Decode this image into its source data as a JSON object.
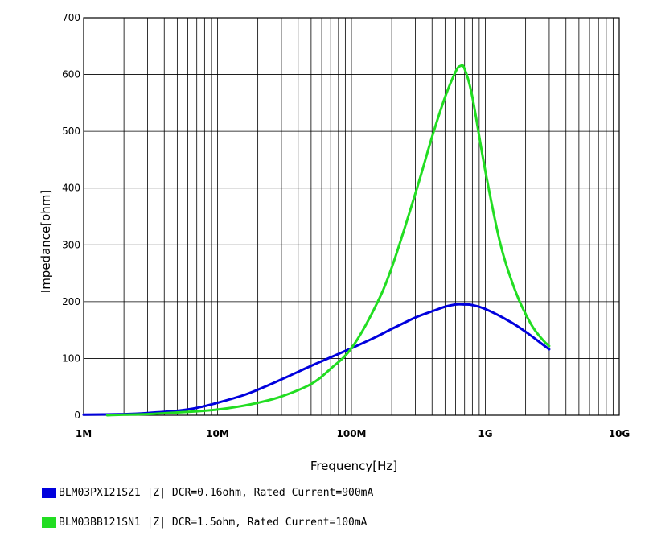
{
  "chart_data": {
    "type": "line",
    "xlabel": "Frequency[Hz]",
    "ylabel": "Impedance[ohm]",
    "x_scale": "log",
    "xlim": [
      1000000,
      10000000000
    ],
    "ylim": [
      0,
      700
    ],
    "grid": true,
    "legend_position": "bottom",
    "x_ticks": [
      {
        "value": 1000000,
        "label": "1M"
      },
      {
        "value": 10000000,
        "label": "10M"
      },
      {
        "value": 100000000,
        "label": "100M"
      },
      {
        "value": 1000000000,
        "label": "1G"
      },
      {
        "value": 10000000000,
        "label": "10G"
      }
    ],
    "y_ticks": [
      {
        "value": 0,
        "label": "0"
      },
      {
        "value": 100,
        "label": "100"
      },
      {
        "value": 200,
        "label": "200"
      },
      {
        "value": 300,
        "label": "300"
      },
      {
        "value": 400,
        "label": "400"
      },
      {
        "value": 500,
        "label": "500"
      },
      {
        "value": 600,
        "label": "600"
      },
      {
        "value": 700,
        "label": "700"
      }
    ],
    "series": [
      {
        "name": "BLM03PX121SZ1 |Z| DCR=0.16ohm, Rated Current=900mA",
        "color": "#0000dd",
        "points": [
          [
            1000000,
            1
          ],
          [
            2000000,
            2
          ],
          [
            3000000,
            4
          ],
          [
            5000000,
            8
          ],
          [
            7000000,
            13
          ],
          [
            10000000,
            22
          ],
          [
            15000000,
            34
          ],
          [
            20000000,
            45
          ],
          [
            30000000,
            63
          ],
          [
            50000000,
            87
          ],
          [
            70000000,
            102
          ],
          [
            100000000,
            118
          ],
          [
            150000000,
            137
          ],
          [
            200000000,
            152
          ],
          [
            300000000,
            172
          ],
          [
            400000000,
            183
          ],
          [
            500000000,
            191
          ],
          [
            600000000,
            195
          ],
          [
            700000000,
            195
          ],
          [
            800000000,
            194
          ],
          [
            1000000000,
            187
          ],
          [
            1500000000,
            166
          ],
          [
            2000000000,
            147
          ],
          [
            2500000000,
            130
          ],
          [
            3000000000,
            116
          ]
        ]
      },
      {
        "name": "BLM03BB121SN1 |Z| DCR=1.5ohm, Rated Current=100mA",
        "color": "#22dd22",
        "points": [
          [
            1500000,
            0
          ],
          [
            2000000,
            1
          ],
          [
            3000000,
            2
          ],
          [
            5000000,
            5
          ],
          [
            7000000,
            7
          ],
          [
            10000000,
            10
          ],
          [
            15000000,
            16
          ],
          [
            20000000,
            22
          ],
          [
            30000000,
            33
          ],
          [
            50000000,
            55
          ],
          [
            70000000,
            82
          ],
          [
            100000000,
            118
          ],
          [
            150000000,
            190
          ],
          [
            200000000,
            260
          ],
          [
            300000000,
            390
          ],
          [
            400000000,
            490
          ],
          [
            500000000,
            560
          ],
          [
            600000000,
            605
          ],
          [
            650000000,
            615
          ],
          [
            700000000,
            610
          ],
          [
            800000000,
            560
          ],
          [
            1000000000,
            430
          ],
          [
            1300000000,
            300
          ],
          [
            1700000000,
            215
          ],
          [
            2200000000,
            160
          ],
          [
            2700000000,
            132
          ],
          [
            3000000000,
            122
          ]
        ]
      }
    ]
  }
}
